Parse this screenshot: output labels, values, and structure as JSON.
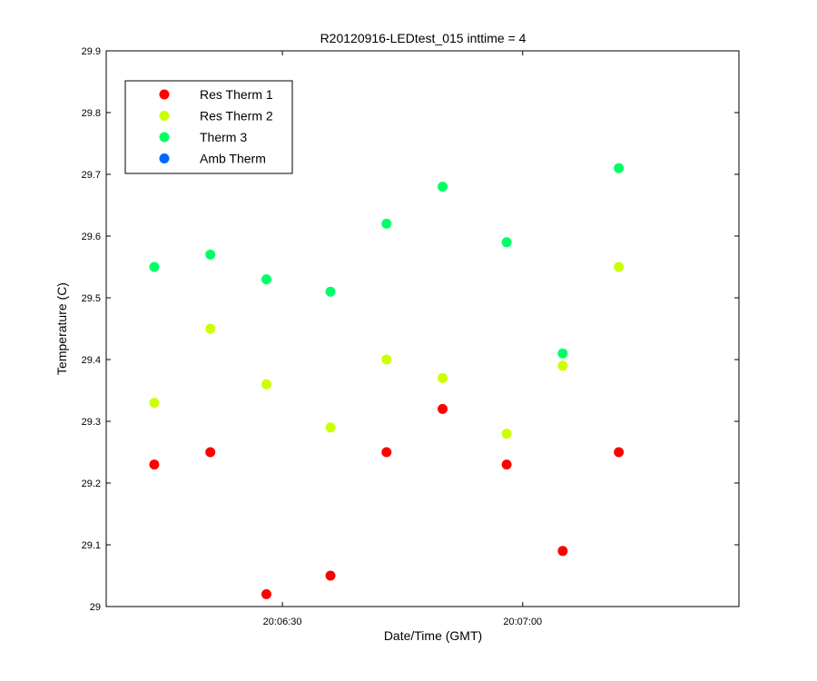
{
  "chart_data": {
    "type": "scatter",
    "title": "R20120916-LEDtest_015 inttime = 4",
    "xlabel": "Date/Time (GMT)",
    "ylabel": "Temperature (C)",
    "x_unit": "time",
    "xlim": [
      "20:06:08",
      "20:07:27"
    ],
    "ylim": [
      29.0,
      29.9
    ],
    "x_ticks": [
      "20:06:30",
      "20:07:00"
    ],
    "y_ticks": [
      "29",
      "29.1",
      "29.2",
      "29.3",
      "29.4",
      "29.5",
      "29.6",
      "29.7",
      "29.8",
      "29.9"
    ],
    "x": [
      "20:06:14",
      "20:06:21",
      "20:06:28",
      "20:06:36",
      "20:06:43",
      "20:06:50",
      "20:06:58",
      "20:07:05",
      "20:07:12"
    ],
    "series": [
      {
        "name": "Res Therm 1",
        "color": "#ff0000",
        "values": [
          29.23,
          29.25,
          29.02,
          29.05,
          29.25,
          29.32,
          29.23,
          29.09,
          29.25
        ]
      },
      {
        "name": "Res Therm 2",
        "color": "#ccff00",
        "values": [
          29.33,
          29.45,
          29.36,
          29.29,
          29.4,
          29.37,
          29.28,
          29.39,
          29.55
        ]
      },
      {
        "name": "Therm 3",
        "color": "#00ff66",
        "values": [
          29.55,
          29.57,
          29.53,
          29.51,
          29.62,
          29.68,
          29.59,
          29.41,
          29.71
        ]
      },
      {
        "name": "Amb Therm",
        "color": "#0066ff",
        "values": []
      }
    ],
    "legend_position": "top-left",
    "grid": false
  }
}
